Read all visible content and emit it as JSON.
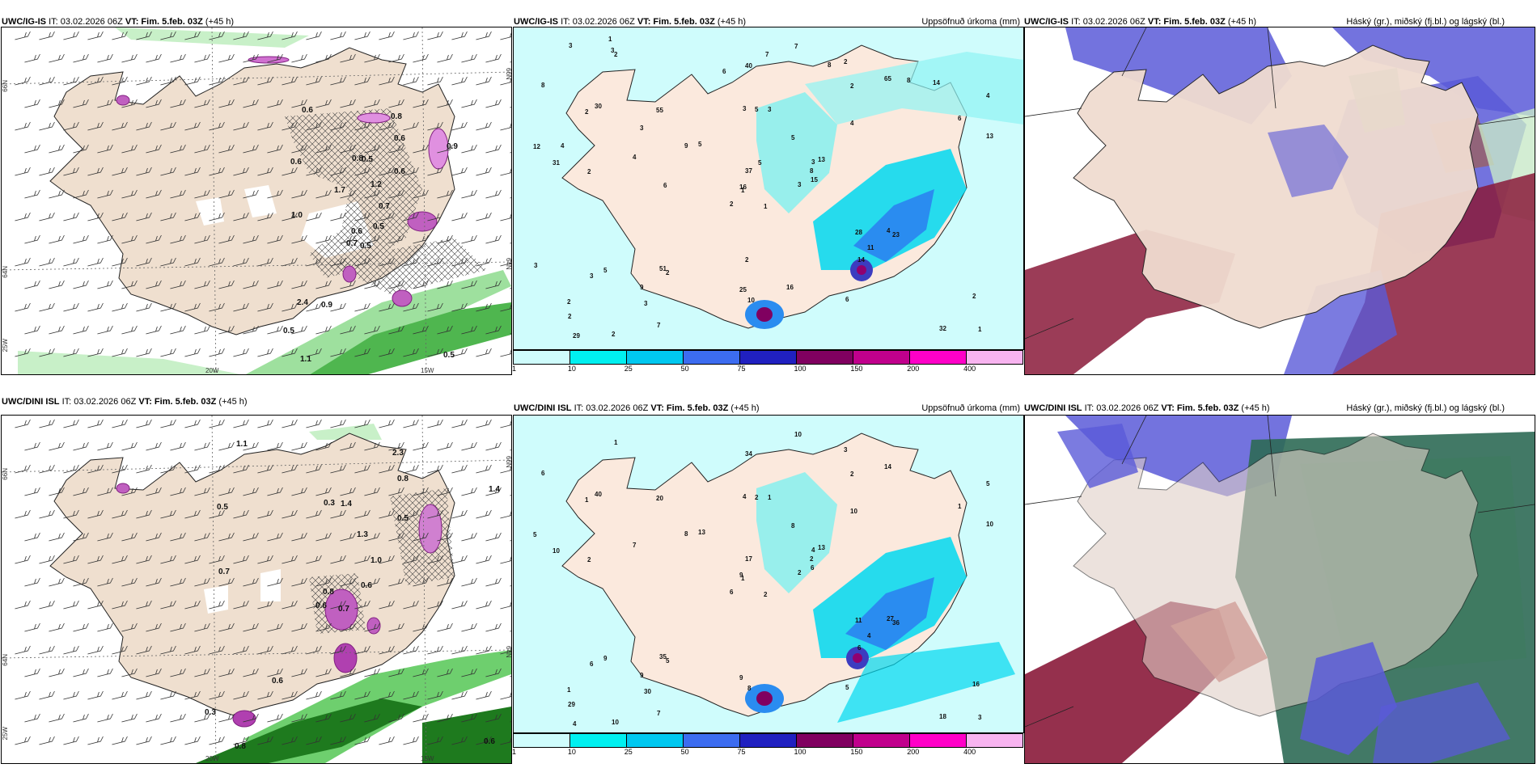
{
  "panels": [
    {
      "id": "p1",
      "source": "UWC/IG-IS",
      "it": "IT: 03.02.2026 06Z",
      "vt_label": "VT:",
      "vt": "Fim. 5.feb. 03Z",
      "lead": "(+45 h)",
      "right_title": ""
    },
    {
      "id": "p2",
      "source": "UWC/IG-IS",
      "it": "IT: 03.02.2026 06Z",
      "vt_label": "VT:",
      "vt": "Fim. 5.feb. 03Z",
      "lead": "(+45 h)",
      "right_title": "Uppsöfnuð úrkoma (mm)"
    },
    {
      "id": "p3",
      "source": "UWC/IG-IS",
      "it": "IT: 03.02.2026 06Z",
      "vt_label": "VT:",
      "vt": "Fim. 5.feb. 03Z",
      "lead": "(+45 h)",
      "right_title": "Háský (gr.), miðský (fj.bl.) og lágský (bl.)"
    },
    {
      "id": "p4",
      "source": "UWC/DINI ISL",
      "it": "IT: 03.02.2026 06Z",
      "vt_label": "VT:",
      "vt": "Fim. 5.feb. 03Z",
      "lead": "(+45 h)",
      "right_title": ""
    },
    {
      "id": "p5",
      "source": "UWC/DINI ISL",
      "it": "IT: 03.02.2026 06Z",
      "vt_label": "VT:",
      "vt": "Fim. 5.feb. 03Z",
      "lead": "(+45 h)",
      "right_title": "Uppsöfnuð úrkoma (mm)"
    },
    {
      "id": "p6",
      "source": "UWC/DINI ISL",
      "it": "IT: 03.02.2026 06Z",
      "vt_label": "VT:",
      "vt": "Fim. 5.feb. 03Z",
      "lead": "(+45 h)",
      "right_title": "Háský (gr.), miðský (fj.bl.) og lágský (bl.)"
    }
  ],
  "colorbar": {
    "colors": [
      "#cffcfc",
      "#00f0f0",
      "#00c8f0",
      "#3c6cf0",
      "#2020c0",
      "#800060",
      "#c0008c",
      "#ff00c8",
      "#f8b4f0"
    ],
    "ticks": [
      "1",
      "10",
      "25",
      "50",
      "75",
      "100",
      "150",
      "200",
      "400"
    ]
  },
  "grid_labels": {
    "lon_20w": "20W",
    "lon_15w": "15W",
    "lat_66n": "66N",
    "lat_64n": "64N",
    "lat_25w": "25W",
    "lat_66n_r": "66N",
    "lat_64n_r": "64N"
  },
  "wind_labels_top": [
    "0.5",
    "0.6",
    "0.6",
    "0.5",
    "0.7",
    "0.9",
    "0.8",
    "0.5",
    "0.6",
    "0.5",
    "0.6",
    "0.5",
    "1.0",
    "0.9",
    "0.7",
    "0.6",
    "1.1",
    "0.8",
    "1.2",
    "2.4",
    "1.7"
  ],
  "wind_labels_bottom": [
    "0.7",
    "0.5",
    "0.8",
    "0.3",
    "1.0",
    "0.6",
    "2.3",
    "1.4",
    "0.8",
    "0.6",
    "1.1",
    "0.6",
    "0.7",
    "1.4",
    "0.6",
    "0.5",
    "0.8",
    "0.3",
    "1.3"
  ],
  "precip_top": [
    "1",
    "2",
    "1",
    "2",
    "3",
    "2",
    "2",
    "3",
    "2",
    "3",
    "2",
    "1",
    "2",
    "4",
    "2",
    "4",
    "2",
    "3",
    "5",
    "5",
    "5",
    "2",
    "3",
    "5",
    "13",
    "23",
    "30",
    "40",
    "31",
    "28",
    "13",
    "16",
    "25",
    "37",
    "55",
    "65",
    "51",
    "32",
    "2",
    "4",
    "7",
    "9",
    "4",
    "14",
    "7",
    "12",
    "8",
    "29",
    "10",
    "15",
    "3",
    "6",
    "8",
    "11",
    "6",
    "9",
    "3",
    "3",
    "16",
    "14",
    "7",
    "6",
    "4",
    "3",
    "8",
    "1",
    "8",
    "6",
    "5",
    "3",
    "2"
  ],
  "precip_bottom": [
    "2",
    "1",
    "1",
    "1",
    "4",
    "5",
    "3",
    "1",
    "2",
    "2",
    "1",
    "3",
    "2",
    "5",
    "6",
    "10",
    "10",
    "4",
    "8",
    "9",
    "13",
    "29",
    "30",
    "2",
    "13",
    "36",
    "40",
    "34",
    "10",
    "11",
    "10",
    "9",
    "9",
    "17",
    "20",
    "14",
    "35",
    "18",
    "16",
    "27",
    "10",
    "8",
    "7",
    "6",
    "7",
    "5",
    "2",
    "4",
    "8",
    "6",
    "6",
    "1",
    "6",
    "4",
    "5",
    "9"
  ]
}
